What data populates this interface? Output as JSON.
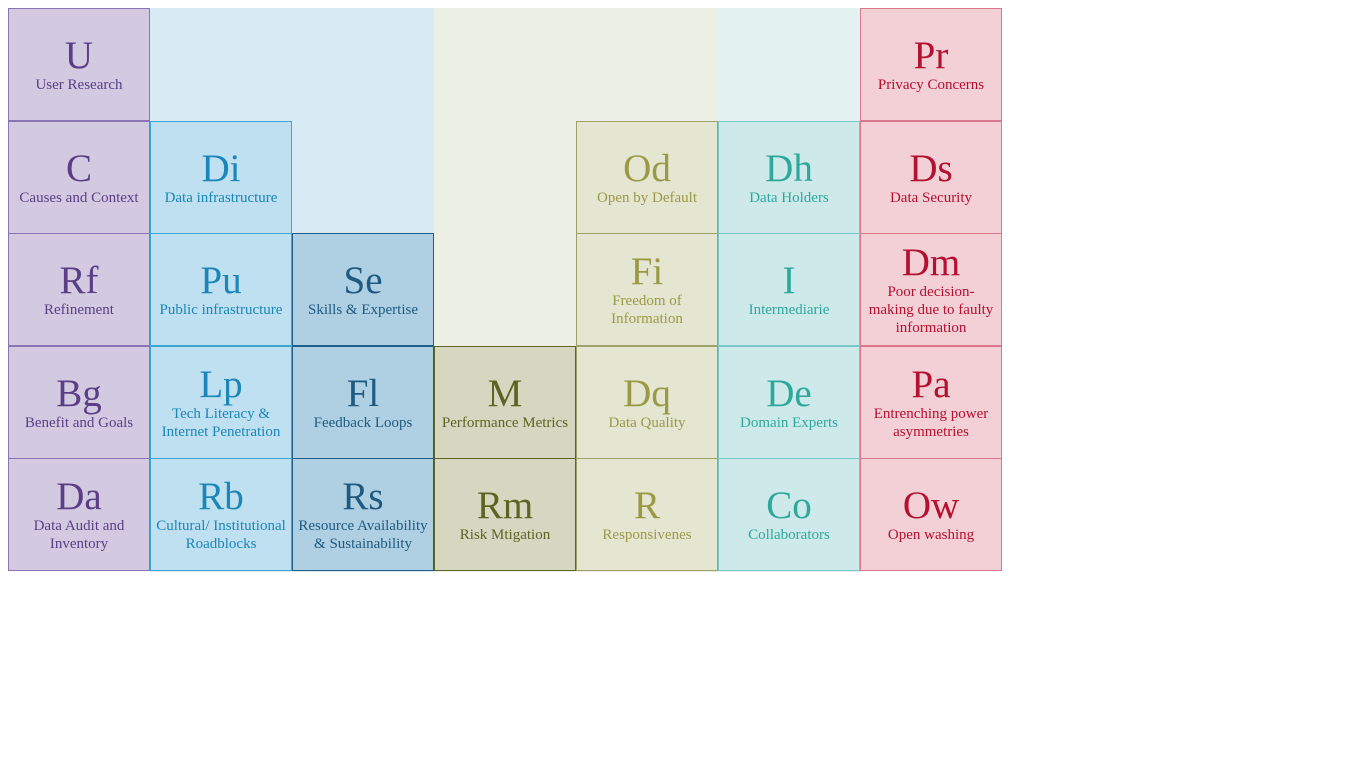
{
  "columns": [
    {
      "text": "#5a3e86",
      "bg": "#d3cae1",
      "border": "#8a74b4",
      "band": "#ffffff",
      "cells": [
        {
          "sym": "U",
          "label": "User Research"
        },
        {
          "sym": "C",
          "label": "Causes and Context"
        },
        {
          "sym": "Rf",
          "label": "Refinement"
        },
        {
          "sym": "Bg",
          "label": "Benefit and Goals"
        },
        {
          "sym": "Da",
          "label": "Data Audit and Inventory"
        }
      ]
    },
    {
      "text": "#1b86b8",
      "bg": "#bfe0f0",
      "border": "#3ea6d2",
      "band": "#d8ebf5",
      "cells": [
        {
          "sym": "Di",
          "label": "Data infrastructure"
        },
        {
          "sym": "Pu",
          "label": "Public infrastructure"
        },
        {
          "sym": "Lp",
          "label": "Tech Literacy & Internet Penetration"
        },
        {
          "sym": "Rb",
          "label": "Cultural/ Institutional Roadblocks"
        }
      ]
    },
    {
      "text": "#1e5a82",
      "bg": "#afd0e2",
      "border": "#1f5e88",
      "band": "#d8ebf5",
      "cells": [
        {
          "sym": "Se",
          "label": "Skills & Expertise"
        },
        {
          "sym": "Fl",
          "label": "Feedback Loops"
        },
        {
          "sym": "Rs",
          "label": "Resource Availability & Sustainability"
        }
      ]
    },
    {
      "text": "#5c6422",
      "bg": "#d5d7c0",
      "border": "#5e6626",
      "band": "#ecefe3",
      "cells": [
        {
          "sym": "M",
          "label": "Performance Metrics"
        },
        {
          "sym": "Rm",
          "label": "Risk Mtigation"
        }
      ]
    },
    {
      "text": "#9a9a44",
      "bg": "#e4e6d2",
      "border": "#9ea26a",
      "band": "#ecefe3",
      "cells": [
        {
          "sym": "Od",
          "label": "Open by Default"
        },
        {
          "sym": "Fi",
          "label": "Freedom of Information"
        },
        {
          "sym": "Dq",
          "label": "Data Quality"
        },
        {
          "sym": "R",
          "label": "Responsivenes"
        }
      ]
    },
    {
      "text": "#2fa89c",
      "bg": "#cde9e9",
      "border": "#79c6c8",
      "band": "#e3f1f1",
      "cells": [
        {
          "sym": "Dh",
          "label": "Data Holders"
        },
        {
          "sym": "I",
          "label": "Intermediarie"
        },
        {
          "sym": "De",
          "label": "Domain Experts"
        },
        {
          "sym": "Co",
          "label": "Collaborators"
        }
      ]
    },
    {
      "text": "#b41030",
      "bg": "#f3cfd6",
      "border": "#d9788c",
      "band": "#ffffff",
      "cells": [
        {
          "sym": "Pr",
          "label": "Privacy Concerns"
        },
        {
          "sym": "Ds",
          "label": "Data Security"
        },
        {
          "sym": "Dm",
          "label": "Poor decision-making due to faulty information"
        },
        {
          "sym": "Pa",
          "label": "Entrenching power asymmetries"
        },
        {
          "sym": "Ow",
          "label": "Open washing"
        }
      ]
    }
  ]
}
